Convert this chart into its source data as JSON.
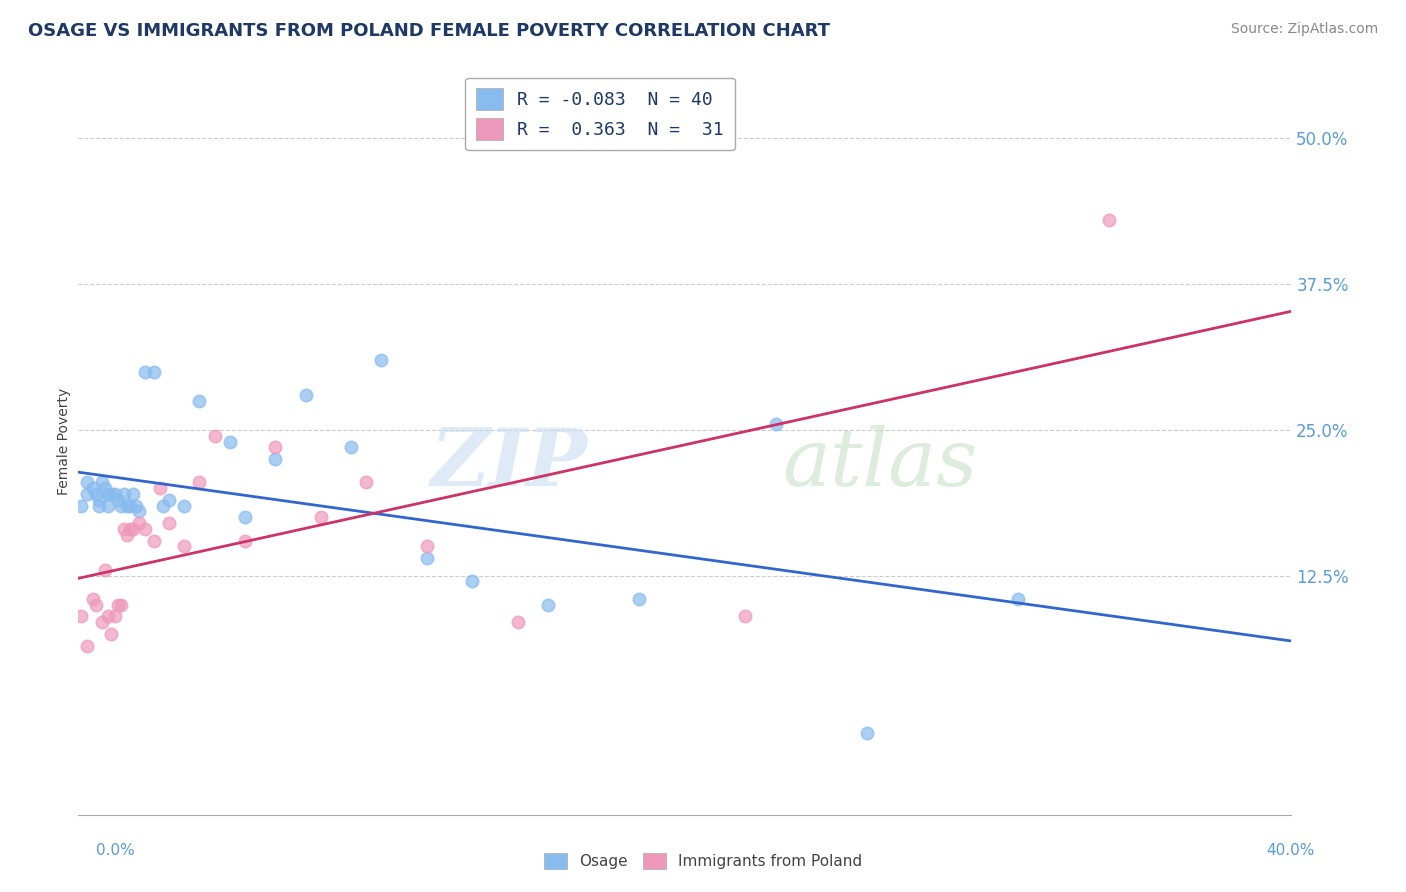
{
  "title": "OSAGE VS IMMIGRANTS FROM POLAND FEMALE POVERTY CORRELATION CHART",
  "source": "Source: ZipAtlas.com",
  "ylabel": "Female Poverty",
  "right_yticks": [
    "50.0%",
    "37.5%",
    "25.0%",
    "12.5%"
  ],
  "right_ytick_vals": [
    0.5,
    0.375,
    0.25,
    0.125
  ],
  "legend_r1": "R = -0.083  N = 40",
  "legend_r2": "R =  0.363  N =  31",
  "osage_color": "#88bbee",
  "poland_color": "#ee99bb",
  "osage_line_color": "#3366cc",
  "poland_line_color": "#cc3366",
  "xmin": 0.0,
  "xmax": 0.4,
  "ymin": -0.08,
  "ymax": 0.56,
  "osage_x": [
    0.001,
    0.003,
    0.003,
    0.005,
    0.006,
    0.007,
    0.007,
    0.008,
    0.009,
    0.01,
    0.01,
    0.011,
    0.012,
    0.013,
    0.014,
    0.015,
    0.016,
    0.017,
    0.018,
    0.019,
    0.02,
    0.022,
    0.025,
    0.028,
    0.03,
    0.035,
    0.04,
    0.05,
    0.055,
    0.065,
    0.075,
    0.09,
    0.1,
    0.115,
    0.13,
    0.155,
    0.185,
    0.23,
    0.26,
    0.31
  ],
  "osage_y": [
    0.185,
    0.205,
    0.195,
    0.2,
    0.195,
    0.19,
    0.185,
    0.205,
    0.2,
    0.195,
    0.185,
    0.195,
    0.195,
    0.19,
    0.185,
    0.195,
    0.185,
    0.185,
    0.195,
    0.185,
    0.18,
    0.3,
    0.3,
    0.185,
    0.19,
    0.185,
    0.275,
    0.24,
    0.175,
    0.225,
    0.28,
    0.235,
    0.31,
    0.14,
    0.12,
    0.1,
    0.105,
    0.255,
    -0.01,
    0.105
  ],
  "poland_x": [
    0.001,
    0.003,
    0.005,
    0.006,
    0.008,
    0.009,
    0.01,
    0.011,
    0.012,
    0.013,
    0.014,
    0.015,
    0.016,
    0.017,
    0.018,
    0.02,
    0.022,
    0.025,
    0.027,
    0.03,
    0.035,
    0.04,
    0.045,
    0.055,
    0.065,
    0.08,
    0.095,
    0.115,
    0.145,
    0.22,
    0.34
  ],
  "poland_y": [
    0.09,
    0.065,
    0.105,
    0.1,
    0.085,
    0.13,
    0.09,
    0.075,
    0.09,
    0.1,
    0.1,
    0.165,
    0.16,
    0.165,
    0.165,
    0.17,
    0.165,
    0.155,
    0.2,
    0.17,
    0.15,
    0.205,
    0.245,
    0.155,
    0.235,
    0.175,
    0.205,
    0.15,
    0.085,
    0.09,
    0.43
  ]
}
